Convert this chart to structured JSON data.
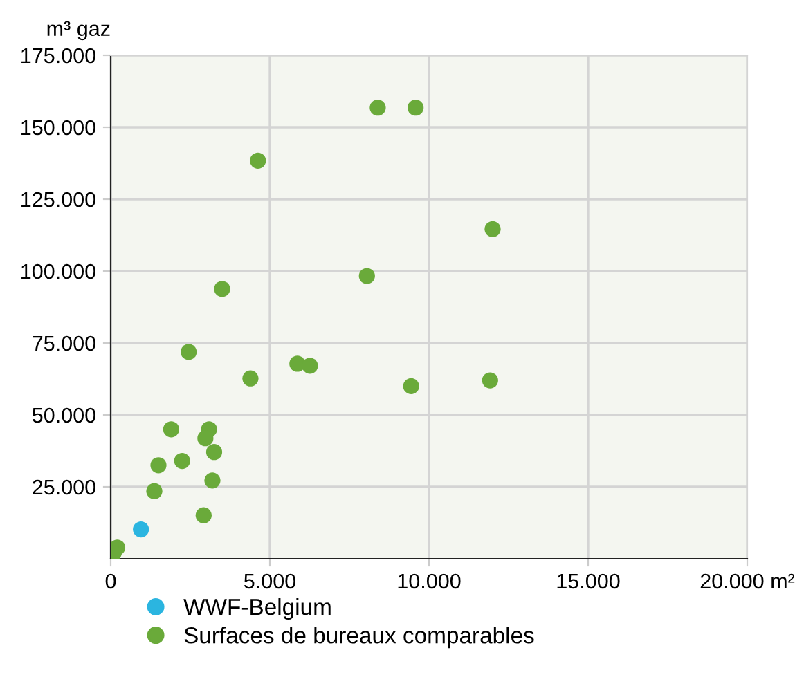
{
  "chart_data": {
    "type": "scatter",
    "ylabel": "m³ gaz",
    "series": [
      {
        "name": "WWF-Belgium",
        "color": "#2bb5e0",
        "x": [
          950
        ],
        "values": [
          10200
        ]
      },
      {
        "name": "Surfaces de bureaux comparables",
        "color": "#6aaa3a",
        "x": [
          8390,
          9580,
          4625,
          8050,
          3500,
          2450,
          5865,
          6260,
          4390,
          9440,
          1900,
          3090,
          2975,
          3250,
          1500,
          2245,
          3195,
          1370,
          2920,
          205,
          90,
          12000,
          11920
        ],
        "values": [
          156800,
          156800,
          138400,
          98300,
          93800,
          71900,
          67800,
          67100,
          62700,
          60000,
          45000,
          45000,
          41900,
          37100,
          32500,
          34000,
          27200,
          23500,
          15100,
          3900,
          1900,
          114600,
          62000
        ]
      }
    ],
    "xlim": [
      0,
      20000
    ],
    "ylim": [
      0,
      175000
    ],
    "xticks": [
      {
        "value": 0,
        "label": "0"
      },
      {
        "value": 5000,
        "label": "5.000"
      },
      {
        "value": 10000,
        "label": "10.000"
      },
      {
        "value": 15000,
        "label": "15.000"
      },
      {
        "value": 20000,
        "label": "20.000 m²"
      }
    ],
    "yticks": [
      {
        "value": 25000,
        "label": "25.000"
      },
      {
        "value": 50000,
        "label": "50.000"
      },
      {
        "value": 75000,
        "label": "75.000"
      },
      {
        "value": 100000,
        "label": "100.000"
      },
      {
        "value": 125000,
        "label": "125.000"
      },
      {
        "value": 150000,
        "label": "150.000"
      },
      {
        "value": 175000,
        "label": "175.000"
      }
    ],
    "grid": true,
    "legend": "bottom",
    "marker": "circle"
  }
}
